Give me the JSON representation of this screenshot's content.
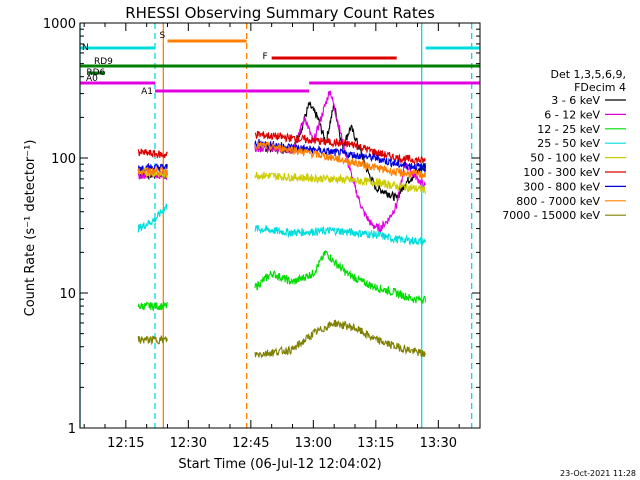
{
  "chart_data": {
    "type": "line",
    "title": "RHESSI Observing Summary Count Rates",
    "xlabel": "Start Time (06-Jul-12 12:04:02)",
    "ylabel": "Count Rate (s⁻¹ detector⁻¹)",
    "y_scale": "log",
    "ylim": [
      1,
      1000
    ],
    "xlim": [
      "12:04",
      "13:40"
    ],
    "x_ticks": [
      "12:15",
      "12:30",
      "12:45",
      "13:00",
      "13:15",
      "13:30"
    ],
    "y_ticks": [
      "1",
      "10",
      "100",
      "1000"
    ],
    "timestamp": "23-Oct-2021 11:28",
    "legend": {
      "placement": "right",
      "header": [
        "Det 1,3,5,6,9,",
        "FDecim 4"
      ],
      "entries": [
        {
          "label": "3 - 6 keV",
          "color": "#000000"
        },
        {
          "label": "6 - 12 keV",
          "color": "#e000e0"
        },
        {
          "label": "12 - 25 keV",
          "color": "#00dd00"
        },
        {
          "label": "25 - 50 keV",
          "color": "#00dddd"
        },
        {
          "label": "50 - 100 keV",
          "color": "#cccc00"
        },
        {
          "label": "100 - 300 keV",
          "color": "#dd0000"
        },
        {
          "label": "300 - 800 keV",
          "color": "#0000dd"
        },
        {
          "label": "800 - 7000 keV",
          "color": "#ff8000"
        },
        {
          "label": "7000 - 15000 keV",
          "color": "#808000"
        }
      ]
    },
    "flag_bars": [
      {
        "label": "S",
        "color": "#ff8000",
        "start": "12:25",
        "end": "12:44"
      },
      {
        "label": "N",
        "color": "#00dddd",
        "start": "12:04",
        "end": "12:22"
      },
      {
        "label": "N",
        "color": "#00dddd",
        "start": "13:27",
        "end": "13:40"
      },
      {
        "label": "F",
        "color": "#dd0000",
        "start": "12:50",
        "end": "13:20"
      },
      {
        "label": "RD9",
        "color": "#008000",
        "start": "12:04",
        "end": "13:40"
      },
      {
        "label": "RD6",
        "color": "#008000",
        "start": "12:06",
        "end": "12:10"
      },
      {
        "label": "A0",
        "color": "#e000e0",
        "start": "12:04",
        "end": "12:22"
      },
      {
        "label": "A0",
        "color": "#e000e0",
        "start": "12:59",
        "end": "13:40"
      },
      {
        "label": "A1",
        "color": "#e000e0",
        "start": "12:22",
        "end": "12:59"
      }
    ],
    "vertical_markers": [
      {
        "time": "12:04",
        "color": "#00dddd",
        "style": "solid"
      },
      {
        "time": "12:22",
        "color": "#00dddd",
        "style": "dashed"
      },
      {
        "time": "12:24",
        "color": "#ff8000",
        "style": "solid"
      },
      {
        "time": "12:44",
        "color": "#ff8000",
        "style": "dashed"
      },
      {
        "time": "13:26",
        "color": "#00dddd",
        "style": "solid"
      },
      {
        "time": "13:38",
        "color": "#00dddd",
        "style": "dashed"
      }
    ],
    "segments": [
      {
        "start": "12:18",
        "end": "12:25"
      },
      {
        "start": "12:46",
        "end": "13:27"
      }
    ],
    "series": [
      {
        "name": "3 - 6 keV",
        "color": "#000000",
        "points": [
          [
            "12:18",
            75
          ],
          [
            "12:25",
            75
          ],
          [
            "12:46",
            120
          ],
          [
            "12:55",
            115
          ],
          [
            "12:57",
            160
          ],
          [
            "12:59",
            250
          ],
          [
            "13:01",
            200
          ],
          [
            "13:03",
            130
          ],
          [
            "13:05",
            250
          ],
          [
            "13:07",
            120
          ],
          [
            "13:09",
            170
          ],
          [
            "13:11",
            120
          ],
          [
            "13:13",
            80
          ],
          [
            "13:15",
            60
          ],
          [
            "13:18",
            55
          ],
          [
            "13:20",
            50
          ],
          [
            "13:22",
            65
          ],
          [
            "13:27",
            90
          ]
        ]
      },
      {
        "name": "6 - 12 keV",
        "color": "#e000e0",
        "points": [
          [
            "12:18",
            75
          ],
          [
            "12:25",
            75
          ],
          [
            "12:46",
            120
          ],
          [
            "12:55",
            115
          ],
          [
            "12:58",
            200
          ],
          [
            "13:00",
            130
          ],
          [
            "13:04",
            320
          ],
          [
            "13:06",
            180
          ],
          [
            "13:08",
            100
          ],
          [
            "13:10",
            60
          ],
          [
            "13:12",
            40
          ],
          [
            "13:14",
            32
          ],
          [
            "13:16",
            30
          ],
          [
            "13:18",
            35
          ],
          [
            "13:20",
            45
          ],
          [
            "13:22",
            90
          ],
          [
            "13:27",
            60
          ]
        ]
      },
      {
        "name": "12 - 25 keV",
        "color": "#00dd00",
        "points": [
          [
            "12:18",
            8
          ],
          [
            "12:25",
            8
          ],
          [
            "12:46",
            11
          ],
          [
            "12:50",
            14
          ],
          [
            "12:55",
            12
          ],
          [
            "13:00",
            14
          ],
          [
            "13:03",
            20
          ],
          [
            "13:05",
            17
          ],
          [
            "13:08",
            14
          ],
          [
            "13:12",
            12
          ],
          [
            "13:15",
            11
          ],
          [
            "13:20",
            10
          ],
          [
            "13:24",
            9
          ],
          [
            "13:27",
            9
          ]
        ]
      },
      {
        "name": "25 - 50 keV",
        "color": "#00dddd",
        "points": [
          [
            "12:18",
            30
          ],
          [
            "12:22",
            35
          ],
          [
            "12:25",
            45
          ],
          [
            "12:46",
            30
          ],
          [
            "12:55",
            28
          ],
          [
            "13:05",
            29
          ],
          [
            "13:15",
            27
          ],
          [
            "13:20",
            25
          ],
          [
            "13:27",
            24
          ]
        ]
      },
      {
        "name": "50 - 100 keV",
        "color": "#cccc00",
        "points": [
          [
            "12:18",
            80
          ],
          [
            "12:25",
            75
          ],
          [
            "12:46",
            75
          ],
          [
            "12:55",
            72
          ],
          [
            "13:05",
            70
          ],
          [
            "13:15",
            66
          ],
          [
            "13:20",
            62
          ],
          [
            "13:27",
            58
          ]
        ]
      },
      {
        "name": "100 - 300 keV",
        "color": "#dd0000",
        "points": [
          [
            "12:18",
            110
          ],
          [
            "12:25",
            105
          ],
          [
            "12:46",
            150
          ],
          [
            "12:55",
            140
          ],
          [
            "13:00",
            135
          ],
          [
            "13:05",
            130
          ],
          [
            "13:10",
            125
          ],
          [
            "13:15",
            110
          ],
          [
            "13:20",
            100
          ],
          [
            "13:27",
            95
          ]
        ]
      },
      {
        "name": "300 - 800 keV",
        "color": "#0000dd",
        "points": [
          [
            "12:18",
            85
          ],
          [
            "12:25",
            85
          ],
          [
            "12:46",
            130
          ],
          [
            "12:55",
            120
          ],
          [
            "13:05",
            110
          ],
          [
            "13:15",
            100
          ],
          [
            "13:20",
            90
          ],
          [
            "13:27",
            85
          ]
        ]
      },
      {
        "name": "800 - 7000 keV",
        "color": "#ff8000",
        "points": [
          [
            "12:18",
            80
          ],
          [
            "12:25",
            80
          ],
          [
            "12:46",
            125
          ],
          [
            "12:55",
            115
          ],
          [
            "13:05",
            100
          ],
          [
            "13:15",
            85
          ],
          [
            "13:20",
            78
          ],
          [
            "13:27",
            75
          ]
        ]
      },
      {
        "name": "7000 - 15000 keV",
        "color": "#808000",
        "points": [
          [
            "12:18",
            4.5
          ],
          [
            "12:25",
            4.5
          ],
          [
            "12:46",
            3.5
          ],
          [
            "12:55",
            3.8
          ],
          [
            "13:00",
            5
          ],
          [
            "13:05",
            6
          ],
          [
            "13:10",
            5.5
          ],
          [
            "13:15",
            4.5
          ],
          [
            "13:20",
            4
          ],
          [
            "13:27",
            3.5
          ]
        ]
      }
    ]
  }
}
